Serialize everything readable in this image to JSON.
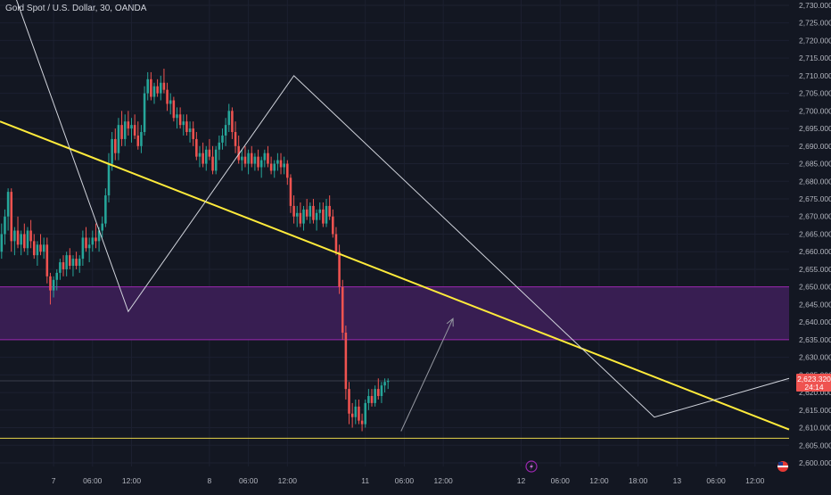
{
  "title": "Gold Spot / U.S. Dollar, 30, OANDA",
  "price_label": {
    "value": "2,623.320",
    "countdown": "24:14"
  },
  "colors": {
    "background": "#131722",
    "up": "#26a69a",
    "down": "#ef5350",
    "trendline": "#ffeb3b",
    "zone_fill": "#3a1f55",
    "zone_border": "#9c27b0",
    "path": "#d1d4dc",
    "axis_text": "#b2b5be",
    "support": "#e6d44a"
  },
  "icons": {
    "flash": "lightning-icon",
    "flag": "us-flag-icon"
  },
  "chart_data": {
    "type": "candlestick",
    "title": "Gold Spot / U.S. Dollar, 30, OANDA",
    "y_ticks": [
      "2,730.000",
      "2,725.000",
      "2,720.000",
      "2,715.000",
      "2,710.000",
      "2,705.000",
      "2,700.000",
      "2,695.000",
      "2,690.000",
      "2,685.000",
      "2,680.000",
      "2,675.000",
      "2,670.000",
      "2,665.000",
      "2,660.000",
      "2,655.000",
      "2,650.000",
      "2,645.000",
      "2,640.000",
      "2,635.000",
      "2,630.000",
      "2,625.000",
      "2,620.000",
      "2,615.000",
      "2,610.000",
      "2,605.000",
      "2,600.000"
    ],
    "y_tick_values": [
      2730,
      2725,
      2720,
      2715,
      2710,
      2705,
      2700,
      2695,
      2690,
      2685,
      2680,
      2675,
      2670,
      2665,
      2660,
      2655,
      2650,
      2645,
      2640,
      2635,
      2630,
      2625,
      2620,
      2615,
      2610,
      2605,
      2600
    ],
    "ylim": [
      2600,
      2731
    ],
    "x_ticks": [
      {
        "label": "7",
        "t": 0
      },
      {
        "label": "06:00",
        "t": 12
      },
      {
        "label": "12:00",
        "t": 24
      },
      {
        "label": "8",
        "t": 48
      },
      {
        "label": "06:00",
        "t": 60
      },
      {
        "label": "12:00",
        "t": 72
      },
      {
        "label": "11",
        "t": 96
      },
      {
        "label": "06:00",
        "t": 108
      },
      {
        "label": "12:00",
        "t": 120
      },
      {
        "label": "12",
        "t": 144
      },
      {
        "label": "06:00",
        "t": 156
      },
      {
        "label": "12:00",
        "t": 168
      },
      {
        "label": "18:00",
        "t": 180
      },
      {
        "label": "13",
        "t": 192
      },
      {
        "label": "06:00",
        "t": 204
      },
      {
        "label": "12:00",
        "t": 216
      }
    ],
    "xlim": [
      -16.5,
      226.5
    ],
    "candles": [
      [
        -16,
        2660,
        2668,
        2658,
        2665
      ],
      [
        -15,
        2665,
        2672,
        2662,
        2670
      ],
      [
        -14,
        2670,
        2678,
        2666,
        2677
      ],
      [
        -13,
        2677,
        2678,
        2660,
        2663
      ],
      [
        -12,
        2663,
        2667,
        2659,
        2666
      ],
      [
        -11,
        2666,
        2670,
        2661,
        2662
      ],
      [
        -10,
        2662,
        2666,
        2659,
        2665
      ],
      [
        -9,
        2665,
        2668,
        2660,
        2661
      ],
      [
        -8,
        2661,
        2667,
        2659,
        2666
      ],
      [
        -7,
        2666,
        2669,
        2661,
        2663
      ],
      [
        -6,
        2663,
        2665,
        2658,
        2659
      ],
      [
        -5,
        2659,
        2663,
        2656,
        2662
      ],
      [
        -4,
        2662,
        2665,
        2659,
        2660
      ],
      [
        -3,
        2660,
        2664,
        2658,
        2662
      ],
      [
        -2,
        2662,
        2664,
        2651,
        2653
      ],
      [
        -1,
        2653,
        2654,
        2645,
        2649
      ],
      [
        0,
        2649,
        2653,
        2647,
        2652
      ],
      [
        1,
        2652,
        2655,
        2649,
        2654
      ],
      [
        2,
        2654,
        2658,
        2652,
        2657
      ],
      [
        3,
        2657,
        2659,
        2653,
        2655
      ],
      [
        4,
        2655,
        2660,
        2653,
        2659
      ],
      [
        5,
        2659,
        2661,
        2655,
        2656
      ],
      [
        6,
        2656,
        2659,
        2653,
        2658
      ],
      [
        7,
        2658,
        2660,
        2655,
        2656
      ],
      [
        8,
        2656,
        2659,
        2654,
        2658
      ],
      [
        9,
        2658,
        2666,
        2656,
        2664
      ],
      [
        10,
        2664,
        2667,
        2660,
        2661
      ],
      [
        11,
        2661,
        2664,
        2657,
        2662
      ],
      [
        12,
        2662,
        2666,
        2660,
        2664
      ],
      [
        13,
        2664,
        2668,
        2661,
        2663
      ],
      [
        14,
        2663,
        2667,
        2660,
        2666
      ],
      [
        15,
        2666,
        2670,
        2664,
        2668
      ],
      [
        16,
        2668,
        2678,
        2667,
        2676
      ],
      [
        17,
        2676,
        2688,
        2674,
        2685
      ],
      [
        18,
        2685,
        2694,
        2683,
        2692
      ],
      [
        19,
        2692,
        2695,
        2686,
        2688
      ],
      [
        20,
        2688,
        2698,
        2686,
        2696
      ],
      [
        21,
        2696,
        2700,
        2690,
        2692
      ],
      [
        22,
        2692,
        2699,
        2690,
        2697
      ],
      [
        23,
        2697,
        2700,
        2693,
        2695
      ],
      [
        24,
        2695,
        2698,
        2691,
        2696
      ],
      [
        25,
        2696,
        2699,
        2692,
        2693
      ],
      [
        26,
        2693,
        2697,
        2689,
        2690
      ],
      [
        27,
        2690,
        2696,
        2688,
        2694
      ],
      [
        28,
        2694,
        2707,
        2693,
        2705
      ],
      [
        29,
        2705,
        2711,
        2703,
        2709
      ],
      [
        30,
        2709,
        2711,
        2703,
        2704
      ],
      [
        31,
        2704,
        2708,
        2702,
        2707
      ],
      [
        32,
        2707,
        2709,
        2704,
        2705
      ],
      [
        33,
        2705,
        2710,
        2703,
        2708
      ],
      [
        34,
        2708,
        2712,
        2705,
        2706
      ],
      [
        35,
        2706,
        2708,
        2700,
        2702
      ],
      [
        36,
        2702,
        2705,
        2699,
        2703
      ],
      [
        37,
        2703,
        2704,
        2697,
        2698
      ],
      [
        38,
        2698,
        2701,
        2695,
        2699
      ],
      [
        39,
        2699,
        2701,
        2695,
        2696
      ],
      [
        40,
        2696,
        2699,
        2693,
        2697
      ],
      [
        41,
        2697,
        2699,
        2693,
        2694
      ],
      [
        42,
        2694,
        2697,
        2691,
        2695
      ],
      [
        43,
        2695,
        2697,
        2690,
        2692
      ],
      [
        44,
        2692,
        2694,
        2686,
        2687
      ],
      [
        45,
        2687,
        2690,
        2684,
        2688
      ],
      [
        46,
        2688,
        2691,
        2684,
        2685
      ],
      [
        47,
        2685,
        2690,
        2683,
        2689
      ],
      [
        48,
        2689,
        2692,
        2686,
        2687
      ],
      [
        49,
        2687,
        2690,
        2682,
        2683
      ],
      [
        50,
        2683,
        2690,
        2682,
        2689
      ],
      [
        51,
        2689,
        2693,
        2686,
        2691
      ],
      [
        52,
        2691,
        2695,
        2689,
        2693
      ],
      [
        53,
        2693,
        2698,
        2690,
        2696
      ],
      [
        54,
        2696,
        2702,
        2694,
        2700
      ],
      [
        55,
        2700,
        2701,
        2692,
        2694
      ],
      [
        56,
        2694,
        2697,
        2688,
        2690
      ],
      [
        57,
        2690,
        2693,
        2685,
        2686
      ],
      [
        58,
        2686,
        2689,
        2683,
        2687
      ],
      [
        59,
        2687,
        2690,
        2684,
        2685
      ],
      [
        60,
        2685,
        2689,
        2682,
        2688
      ],
      [
        61,
        2688,
        2690,
        2684,
        2685
      ],
      [
        62,
        2685,
        2688,
        2683,
        2687
      ],
      [
        63,
        2687,
        2689,
        2683,
        2684
      ],
      [
        64,
        2684,
        2687,
        2681,
        2686
      ],
      [
        65,
        2686,
        2689,
        2684,
        2688
      ],
      [
        66,
        2688,
        2690,
        2684,
        2685
      ],
      [
        67,
        2685,
        2687,
        2682,
        2683
      ],
      [
        68,
        2683,
        2686,
        2681,
        2685
      ],
      [
        69,
        2685,
        2688,
        2683,
        2686
      ],
      [
        70,
        2686,
        2688,
        2682,
        2684
      ],
      [
        71,
        2684,
        2687,
        2682,
        2685
      ],
      [
        72,
        2685,
        2686,
        2679,
        2681
      ],
      [
        73,
        2681,
        2682,
        2671,
        2673
      ],
      [
        74,
        2673,
        2676,
        2668,
        2670
      ],
      [
        75,
        2670,
        2673,
        2667,
        2671
      ],
      [
        76,
        2671,
        2674,
        2667,
        2668
      ],
      [
        77,
        2668,
        2673,
        2666,
        2672
      ],
      [
        78,
        2672,
        2675,
        2669,
        2670
      ],
      [
        79,
        2670,
        2674,
        2668,
        2673
      ],
      [
        80,
        2673,
        2675,
        2668,
        2669
      ],
      [
        81,
        2669,
        2672,
        2666,
        2671
      ],
      [
        82,
        2671,
        2674,
        2669,
        2672
      ],
      [
        83,
        2672,
        2674,
        2667,
        2668
      ],
      [
        84,
        2668,
        2675,
        2667,
        2673
      ],
      [
        85,
        2673,
        2676,
        2669,
        2670
      ],
      [
        86,
        2670,
        2672,
        2664,
        2665
      ],
      [
        87,
        2665,
        2667,
        2659,
        2660
      ],
      [
        88,
        2660,
        2662,
        2648,
        2650
      ],
      [
        89,
        2650,
        2652,
        2635,
        2637
      ],
      [
        90,
        2637,
        2639,
        2618,
        2621
      ],
      [
        91,
        2621,
        2623,
        2611,
        2614
      ],
      [
        92,
        2614,
        2617,
        2610,
        2613
      ],
      [
        93,
        2613,
        2618,
        2611,
        2616
      ],
      [
        94,
        2616,
        2618,
        2611,
        2612
      ],
      [
        95,
        2612,
        2614,
        2609,
        2611
      ],
      [
        96,
        2611,
        2618,
        2610,
        2617
      ],
      [
        97,
        2617,
        2621,
        2615,
        2619
      ],
      [
        98,
        2619,
        2621,
        2616,
        2617
      ],
      [
        99,
        2617,
        2622,
        2616,
        2621
      ],
      [
        100,
        2621,
        2624,
        2618,
        2619
      ],
      [
        101,
        2619,
        2623,
        2617,
        2622
      ],
      [
        102,
        2622,
        2624,
        2620,
        2623
      ],
      [
        103,
        2623,
        2624,
        2621,
        2623.3
      ]
    ],
    "annotations": {
      "trendline": {
        "from": [
          -16.5,
          2697
        ],
        "to": [
          226.5,
          2609.5
        ]
      },
      "zone": {
        "top": 2650,
        "bottom": 2635
      },
      "support_line": 2607,
      "current_price_line": 2623.32,
      "zigzag": [
        [
          -12,
          2733
        ],
        [
          23,
          2643
        ],
        [
          74,
          2710
        ],
        [
          185,
          2613
        ],
        [
          226.5,
          2624
        ]
      ],
      "arrow": {
        "from": [
          107,
          2609
        ],
        "to": [
          123,
          2641
        ]
      }
    }
  }
}
